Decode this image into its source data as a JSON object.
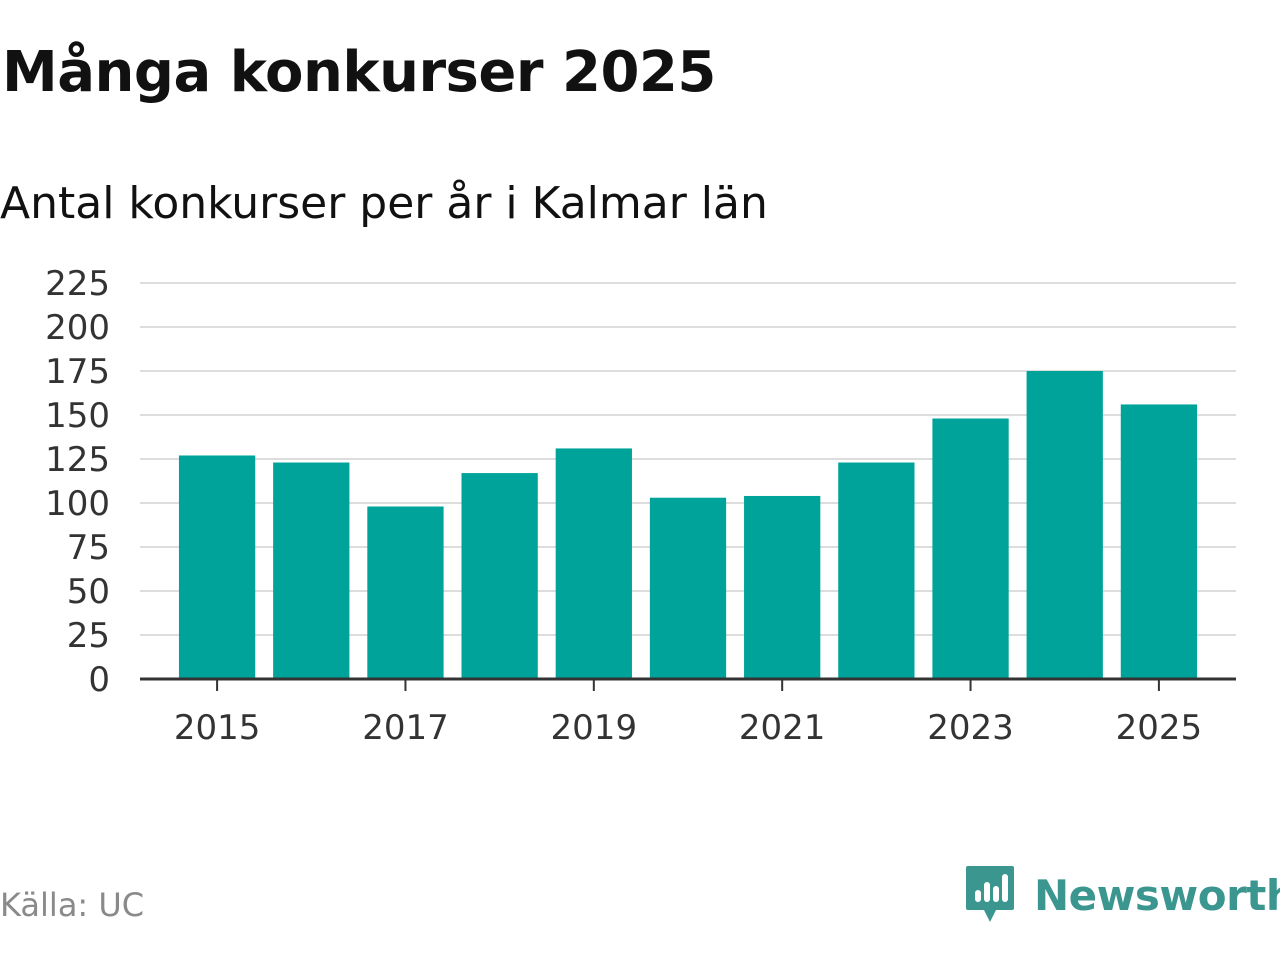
{
  "colors": {
    "bar": "#00a39a",
    "grid": "#dddddd",
    "axis": "#333333",
    "brand": "#3c9690"
  },
  "source_text": "Källa: UC",
  "brand": {
    "name": "Newsworthy",
    "icon": "newsworthy-logo-icon"
  },
  "chart_data": {
    "type": "bar",
    "title": "Många konkurser 2025",
    "subtitle": "Antal konkurser per år i Kalmar län",
    "xlabel": "",
    "ylabel": "",
    "categories": [
      2015,
      2016,
      2017,
      2018,
      2019,
      2020,
      2021,
      2022,
      2023,
      2024,
      2025
    ],
    "values": [
      127,
      123,
      98,
      117,
      131,
      103,
      104,
      123,
      148,
      175,
      156
    ],
    "ylim": [
      0,
      225
    ],
    "y_ticks": [
      0,
      25,
      50,
      75,
      100,
      125,
      150,
      175,
      200,
      225
    ],
    "x_tick_labels": [
      "2015",
      "2017",
      "2019",
      "2021",
      "2023",
      "2025"
    ],
    "grid": true,
    "legend": "none"
  }
}
